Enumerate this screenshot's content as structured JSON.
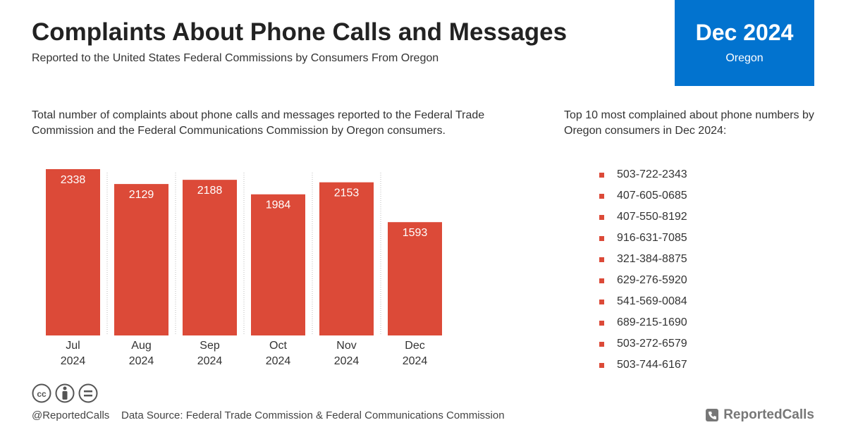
{
  "header": {
    "title": "Complaints About Phone Calls and Messages",
    "subtitle": "Reported to the United States Federal Commissions by Consumers From Oregon"
  },
  "badge": {
    "period": "Dec 2024",
    "region": "Oregon"
  },
  "chart_data": {
    "type": "bar",
    "description": "Total number of complaints about phone calls and messages reported to the Federal Trade Commission and the Federal Communications Commission by Oregon consumers.",
    "categories": [
      "Jul 2024",
      "Aug 2024",
      "Sep 2024",
      "Oct 2024",
      "Nov 2024",
      "Dec 2024"
    ],
    "values": [
      2338,
      2129,
      2188,
      1984,
      2153,
      1593
    ],
    "color": "#dc4a38",
    "ylim": [
      0,
      2338
    ]
  },
  "top_numbers": {
    "title": "Top 10 most complained about phone numbers by Oregon consumers in Dec 2024:",
    "items": [
      "503-722-2343",
      "407-605-0685",
      "407-550-8192",
      "916-631-7085",
      "321-384-8875",
      "629-276-5920",
      "541-569-0084",
      "689-215-1690",
      "503-272-6579",
      "503-744-6167"
    ]
  },
  "footer": {
    "handle": "@ReportedCalls",
    "source": "Data Source: Federal Trade Commission & Federal Communications Commission",
    "brand": "ReportedCalls"
  }
}
